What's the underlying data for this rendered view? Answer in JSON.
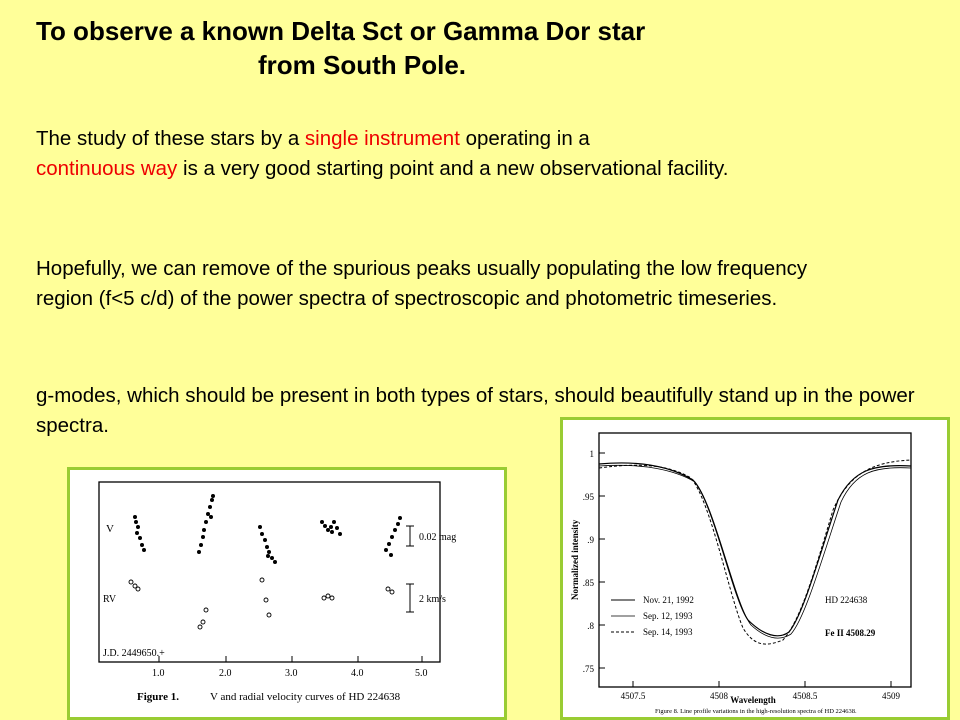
{
  "slide": {
    "title_line1": "To observe a  known Delta Sct or Gamma Dor star",
    "title_line2": "from South Pole.",
    "p1": {
      "a": "The study  of these stars  by a ",
      "b": "single instrument",
      "c": " operating in a",
      "d": "continuous way",
      "e": "  is a very good starting point  and  a new  observational facility."
    },
    "p2": "Hopefully, we can remove of  the spurious  peaks usually populating the  low frequency region (f<5 c/d) of  the power spectra of spectroscopic  and photometric timeseries.",
    "p3": "g-modes, which should be present in both types of stars, should beautifully stand up in the power spectra."
  },
  "figure_left": {
    "label_v": "V",
    "label_rv": "RV",
    "scale_v": "0.02 mag",
    "scale_rv": "2 km/s",
    "jd_label": "J.D. 2449650.+",
    "ticks": [
      "1.0",
      "2.0",
      "3.0",
      "4.0",
      "5.0"
    ],
    "caption_num": "Figure 1.",
    "caption_text": "V and radial velocity curves of HD 224638"
  },
  "figure_right": {
    "ylabel": "Normalized intensity",
    "xlabel": "Wavelength",
    "yticks": [
      "1",
      ".95",
      ".9",
      ".85",
      ".8",
      ".75"
    ],
    "xticks": [
      "4507.5",
      "4508",
      "4508.5",
      "4509"
    ],
    "legend": [
      "Nov. 21, 1992",
      "Sep. 12, 1993",
      "Sep. 14, 1993"
    ],
    "star": "HD 224638",
    "line": "Fe II 4508.29",
    "caption": "Figure 8. Line profile variations in the high-resolution spectra of HD 224638."
  }
}
